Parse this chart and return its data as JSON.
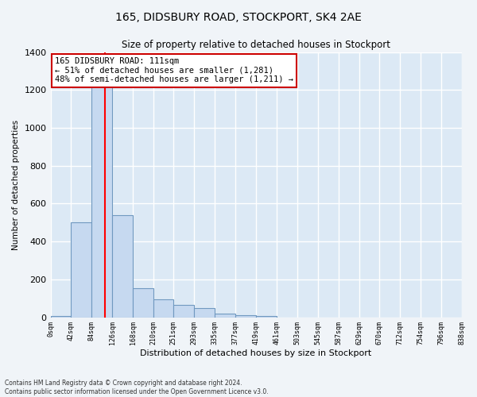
{
  "title": "165, DIDSBURY ROAD, STOCKPORT, SK4 2AE",
  "subtitle": "Size of property relative to detached houses in Stockport",
  "xlabel": "Distribution of detached houses by size in Stockport",
  "ylabel": "Number of detached properties",
  "bar_color": "#c6d9f0",
  "bar_edge_color": "#7099c0",
  "background_color": "#dce9f5",
  "grid_color": "#ffffff",
  "bin_edges": [
    0,
    42,
    84,
    126,
    168,
    210,
    251,
    293,
    335,
    377,
    419,
    461,
    503,
    545,
    587,
    629,
    670,
    712,
    754,
    796,
    838
  ],
  "bin_labels": [
    "0sqm",
    "42sqm",
    "84sqm",
    "126sqm",
    "168sqm",
    "210sqm",
    "251sqm",
    "293sqm",
    "335sqm",
    "377sqm",
    "419sqm",
    "461sqm",
    "503sqm",
    "545sqm",
    "587sqm",
    "629sqm",
    "670sqm",
    "712sqm",
    "754sqm",
    "796sqm",
    "838sqm"
  ],
  "bar_heights": [
    8,
    500,
    1280,
    540,
    155,
    95,
    65,
    50,
    20,
    10,
    5,
    0,
    0,
    0,
    0,
    0,
    0,
    0,
    0,
    0
  ],
  "red_line_x": 111,
  "ylim": [
    0,
    1400
  ],
  "yticks": [
    0,
    200,
    400,
    600,
    800,
    1000,
    1200,
    1400
  ],
  "annotation_text": "165 DIDSBURY ROAD: 111sqm\n← 51% of detached houses are smaller (1,281)\n48% of semi-detached houses are larger (1,211) →",
  "annotation_box_color": "#ffffff",
  "annotation_box_edge_color": "#cc0000",
  "footer_line1": "Contains HM Land Registry data © Crown copyright and database right 2024.",
  "footer_line2": "Contains public sector information licensed under the Open Government Licence v3.0.",
  "fig_width": 6.0,
  "fig_height": 5.0,
  "fig_dpi": 100
}
